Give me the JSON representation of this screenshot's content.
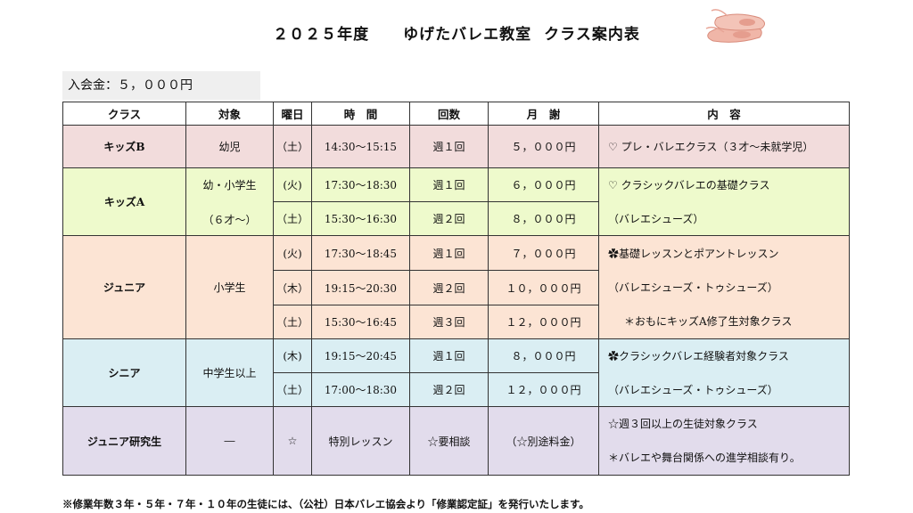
{
  "header": {
    "year": "２０２５年度",
    "school": "ゆげたバレエ教室",
    "doc": "クラス案内表"
  },
  "fee": "入会金：５，０００円",
  "table": {
    "headers": [
      "クラス",
      "対象",
      "曜日",
      "時　間",
      "回数",
      "月　謝",
      "内　容"
    ],
    "kids_b": {
      "cls": "キッズB",
      "target": "幼児",
      "day": "（土）",
      "time": "14:30～15:15",
      "count": "週１回",
      "fee": "５，０００円",
      "c1": "プレ・バレエクラス（３才～未就学児）",
      "icon": "tulip-icon"
    },
    "kids_a": {
      "cls": "キッズA",
      "target1": "幼・小学生",
      "target2": "（６才～）",
      "rows": [
        {
          "day": "(火)",
          "time": "17:30～18:30",
          "count": "週１回",
          "fee": "６，０００円"
        },
        {
          "day": "（土）",
          "time": "15:30～16:30",
          "count": "週２回",
          "fee": "８，０００円"
        }
      ],
      "c1": "クラシックバレエの基礎クラス",
      "c2": "（バレエシューズ）",
      "icon": "tulip-icon"
    },
    "junior": {
      "cls": "ジュニア",
      "target": "小学生",
      "rows": [
        {
          "day": "(火)",
          "time": "17:30～18:45",
          "count": "週１回",
          "fee": "７，０００円"
        },
        {
          "day": "（木）",
          "time": "19:15～20:30",
          "count": "週２回",
          "fee": "１０，０００円"
        },
        {
          "day": "（土）",
          "time": "15:30～16:45",
          "count": "週３回",
          "fee": "１２，０００円"
        }
      ],
      "c1": "基礎レッスンとポアントレッスン",
      "c2": "（バレエシューズ・トゥシューズ）",
      "c3": "＊おもにキッズA修了生対象クラス",
      "icon": "flower-icon"
    },
    "senior": {
      "cls": "シニア",
      "target": "中学生以上",
      "rows": [
        {
          "day": "(木)",
          "time": "19:15～20:45",
          "count": "週１回",
          "fee": "８，０００円"
        },
        {
          "day": "（土）",
          "time": "17:00～18:30",
          "count": "週２回",
          "fee": "１２，０００円"
        }
      ],
      "c1": "クラシックバレエ経験者対象クラス",
      "c2": "（バレエシューズ・トゥシューズ）",
      "icon": "flower-icon"
    },
    "lab": {
      "cls": "ジュニア研究生",
      "target": "―",
      "day": "☆",
      "time": "特別レッスン",
      "count": "☆要相談",
      "fee": "（☆別途料金）",
      "c1": "☆週３回以上の生徒対象クラス",
      "c2": "＊バレエや舞台関係への進学相談有り。"
    }
  },
  "footnote": "※修業年数３年・５年・７年・１０年の生徒には、（公社）日本バレエ協会より「修業認定証」を発行いたします。"
}
